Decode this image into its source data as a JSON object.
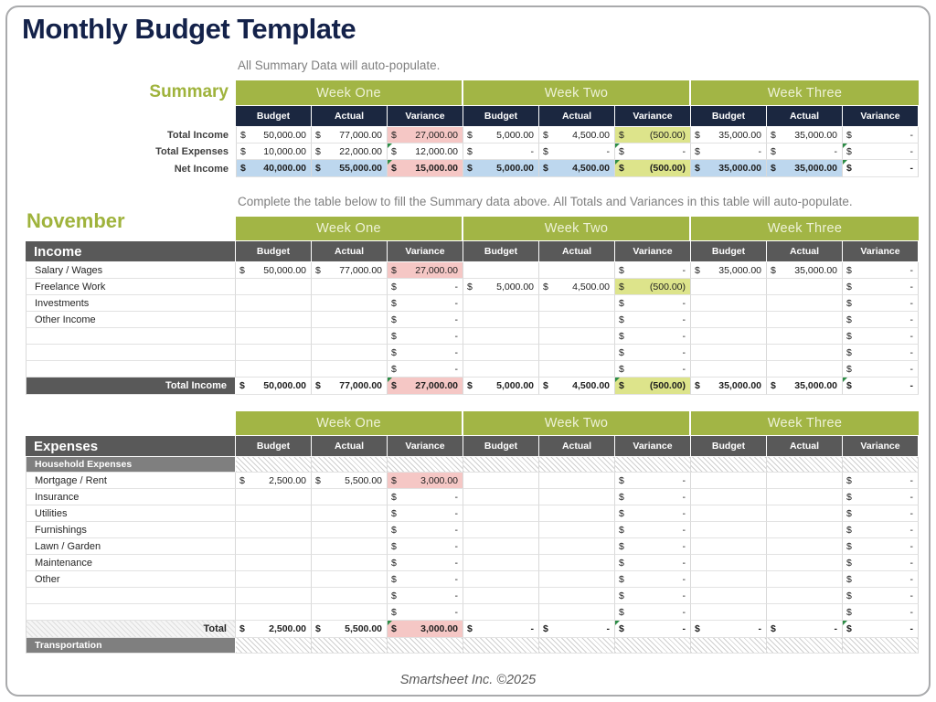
{
  "page": {
    "title": "Monthly Budget Template",
    "footer": "Smartsheet Inc. ©2025"
  },
  "colors": {
    "accent_green": "#a2b545",
    "header_navy": "#1b2740",
    "header_gray": "#595959",
    "variance_pink": "#f5c7c5",
    "variance_olive": "#dde48b",
    "net_income_blue": "#bdd7ee",
    "title_navy": "#14224a"
  },
  "summary": {
    "hint": "All Summary Data will auto-populate.",
    "label": "Summary",
    "weeks": [
      "Week One",
      "Week Two",
      "Week Three"
    ],
    "col_headers": [
      "Budget",
      "Actual",
      "Variance"
    ],
    "rows": [
      {
        "label": "Total Income",
        "cells": [
          "50,000.00",
          "77,000.00",
          {
            "v": "27,000.00",
            "s": "pink"
          },
          "5,000.00",
          "4,500.00",
          {
            "v": "(500.00)",
            "s": "olive"
          },
          "35,000.00",
          "35,000.00",
          "-"
        ]
      },
      {
        "label": "Total Expenses",
        "cells": [
          "10,000.00",
          "22,000.00",
          {
            "v": "12,000.00",
            "fc": 1
          },
          "-",
          "-",
          {
            "v": "-",
            "fc": 1
          },
          "-",
          "-",
          {
            "v": "-",
            "fc": 1
          }
        ]
      },
      {
        "label": "Net Income",
        "bold": true,
        "outlined": true,
        "cells": [
          {
            "v": "40,000.00",
            "s": "blue"
          },
          {
            "v": "55,000.00",
            "s": "blue"
          },
          {
            "v": "15,000.00",
            "s": "pink",
            "fc": 1
          },
          {
            "v": "5,000.00",
            "s": "blue"
          },
          {
            "v": "4,500.00",
            "s": "blue"
          },
          {
            "v": "(500.00)",
            "s": "olive",
            "fc": 1
          },
          {
            "v": "35,000.00",
            "s": "blue"
          },
          {
            "v": "35,000.00",
            "s": "blue"
          },
          {
            "v": "-",
            "fc": 1
          }
        ]
      }
    ]
  },
  "month": {
    "hint": "Complete the table below to fill the Summary data above. All Totals and Variances in this table will auto-populate.",
    "label": "November"
  },
  "income_table": {
    "title": "Income",
    "weeks": [
      "Week One",
      "Week Two",
      "Week Three"
    ],
    "col_headers": [
      "Budget",
      "Actual",
      "Variance"
    ],
    "rows": [
      {
        "label": "Salary / Wages",
        "cells": [
          "50,000.00",
          "77,000.00",
          {
            "v": "27,000.00",
            "s": "pink"
          },
          null,
          null,
          "-",
          "35,000.00",
          "35,000.00",
          "-"
        ]
      },
      {
        "label": "Freelance Work",
        "cells": [
          null,
          null,
          "-",
          "5,000.00",
          "4,500.00",
          {
            "v": "(500.00)",
            "s": "olive"
          },
          null,
          null,
          "-"
        ]
      },
      {
        "label": "Investments",
        "cells": [
          null,
          null,
          "-",
          null,
          null,
          "-",
          null,
          null,
          "-"
        ]
      },
      {
        "label": "Other Income",
        "cells": [
          null,
          null,
          "-",
          null,
          null,
          "-",
          null,
          null,
          "-"
        ]
      },
      {
        "label": "",
        "cells": [
          null,
          null,
          "-",
          null,
          null,
          "-",
          null,
          null,
          "-"
        ]
      },
      {
        "label": "",
        "cells": [
          null,
          null,
          "-",
          null,
          null,
          "-",
          null,
          null,
          "-"
        ]
      },
      {
        "label": "",
        "cells": [
          null,
          null,
          "-",
          null,
          null,
          "-",
          null,
          null,
          "-"
        ]
      }
    ],
    "total": {
      "label": "Total Income",
      "bold": true,
      "outlined": true,
      "cells": [
        "50,000.00",
        "77,000.00",
        {
          "v": "27,000.00",
          "s": "pink",
          "fc": 1
        },
        "5,000.00",
        "4,500.00",
        {
          "v": "(500.00)",
          "s": "olive",
          "fc": 1
        },
        "35,000.00",
        "35,000.00",
        {
          "v": "-",
          "fc": 1
        }
      ]
    }
  },
  "expenses_table": {
    "title": "Expenses",
    "weeks": [
      "Week One",
      "Week Two",
      "Week Three"
    ],
    "col_headers": [
      "Budget",
      "Actual",
      "Variance"
    ],
    "subheader": "Household Expenses",
    "rows": [
      {
        "label": "Mortgage / Rent",
        "cells": [
          "2,500.00",
          "5,500.00",
          {
            "v": "3,000.00",
            "s": "pink"
          },
          null,
          null,
          "-",
          null,
          null,
          "-"
        ]
      },
      {
        "label": "Insurance",
        "cells": [
          null,
          null,
          "-",
          null,
          null,
          "-",
          null,
          null,
          "-"
        ]
      },
      {
        "label": "Utilities",
        "cells": [
          null,
          null,
          "-",
          null,
          null,
          "-",
          null,
          null,
          "-"
        ]
      },
      {
        "label": "Furnishings",
        "cells": [
          null,
          null,
          "-",
          null,
          null,
          "-",
          null,
          null,
          "-"
        ]
      },
      {
        "label": "Lawn / Garden",
        "cells": [
          null,
          null,
          "-",
          null,
          null,
          "-",
          null,
          null,
          "-"
        ]
      },
      {
        "label": "Maintenance",
        "cells": [
          null,
          null,
          "-",
          null,
          null,
          "-",
          null,
          null,
          "-"
        ]
      },
      {
        "label": "Other",
        "cells": [
          null,
          null,
          "-",
          null,
          null,
          "-",
          null,
          null,
          "-"
        ]
      },
      {
        "label": "",
        "cells": [
          null,
          null,
          "-",
          null,
          null,
          "-",
          null,
          null,
          "-"
        ]
      },
      {
        "label": "",
        "cells": [
          null,
          null,
          "-",
          null,
          null,
          "-",
          null,
          null,
          "-"
        ]
      }
    ],
    "total": {
      "label": "Total",
      "bold": true,
      "outlined": true,
      "cells": [
        "2,500.00",
        "5,500.00",
        {
          "v": "3,000.00",
          "s": "pink",
          "fc": 1
        },
        "-",
        "-",
        {
          "v": "-",
          "fc": 1
        },
        "-",
        "-",
        {
          "v": "-",
          "fc": 1
        }
      ]
    },
    "footer_subheader": "Transportation"
  }
}
